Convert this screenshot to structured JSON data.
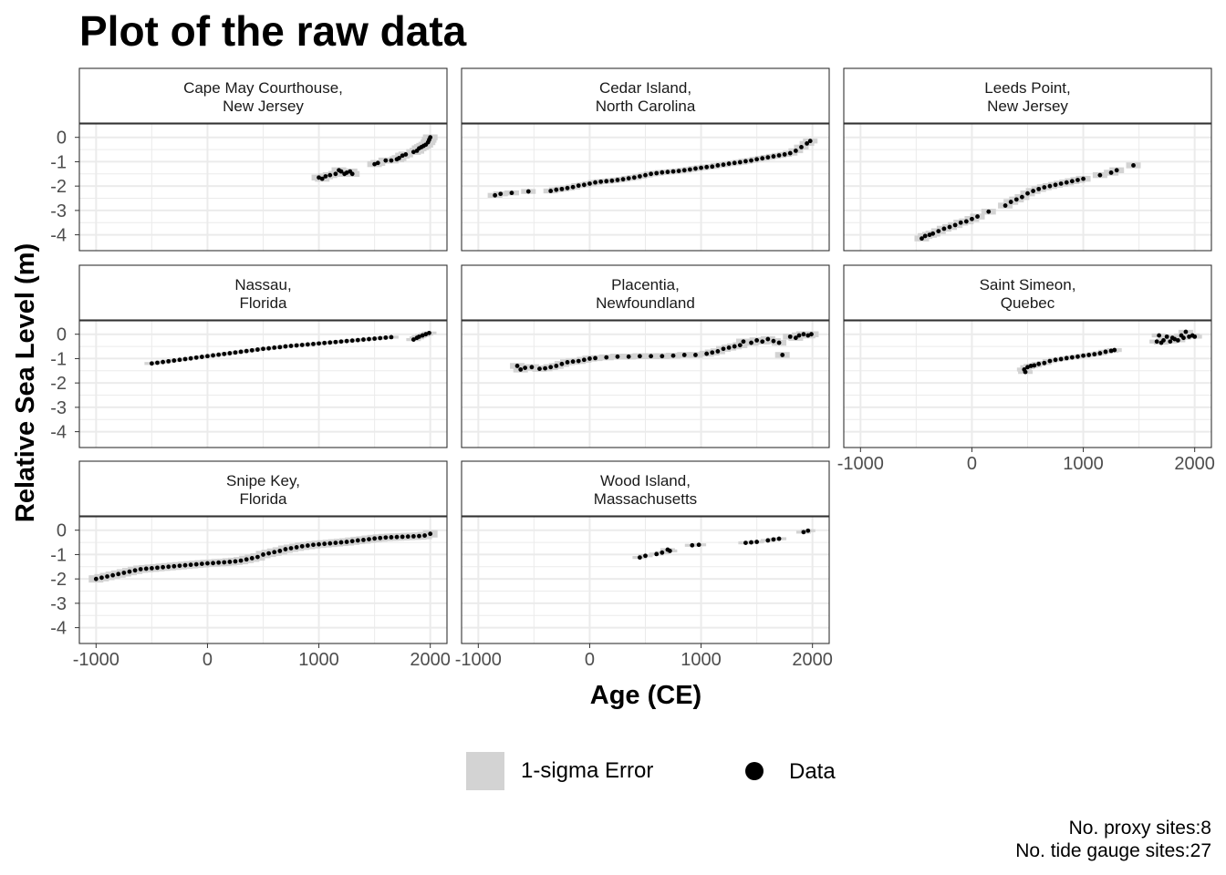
{
  "title": "Plot of the raw data",
  "caption": {
    "proxy": "No. proxy sites:8",
    "tide": "No. tide gauge sites:27"
  },
  "legend": {
    "error_label": "1-sigma Error",
    "data_label": "Data"
  },
  "colors": {
    "points": "#000000",
    "error_band": "#d3d3d3",
    "panel_border": "#333333",
    "strip_fill": "#ffffff",
    "grid": "#ebebeb"
  },
  "chart_data": {
    "type": "scatter",
    "title": "Plot of the raw data",
    "xlabel": "Age (CE)",
    "ylabel": "Relative Sea Level (m)",
    "xlim": [
      -1150,
      2150
    ],
    "ylim": [
      -4.65,
      0.55
    ],
    "xticks": [
      -1000,
      0,
      1000,
      2000
    ],
    "xtick_labels": [
      "-1000",
      "0",
      "1000",
      "2000"
    ],
    "yticks": [
      0,
      -1,
      -2,
      -3,
      -4
    ],
    "ytick_labels": [
      "0",
      "-1",
      "-2",
      "-3",
      "-4"
    ],
    "grid": true,
    "facets": [
      {
        "label": [
          "Cape May Courthouse,",
          "New Jersey"
        ],
        "error_halfwidth": 0.12,
        "x": [
          1000,
          1030,
          1060,
          1100,
          1150,
          1180,
          1200,
          1230,
          1250,
          1280,
          1300,
          1500,
          1530,
          1600,
          1650,
          1700,
          1720,
          1750,
          1780,
          1850,
          1880,
          1900,
          1920,
          1940,
          1960,
          1980,
          1990,
          2000
        ],
        "y": [
          -1.65,
          -1.7,
          -1.6,
          -1.55,
          -1.5,
          -1.35,
          -1.4,
          -1.5,
          -1.45,
          -1.4,
          -1.5,
          -1.1,
          -1.05,
          -0.95,
          -0.95,
          -0.9,
          -0.85,
          -0.75,
          -0.7,
          -0.6,
          -0.55,
          -0.45,
          -0.4,
          -0.35,
          -0.3,
          -0.2,
          -0.1,
          0.0
        ]
      },
      {
        "label": [
          "Cedar Island,",
          "North Carolina"
        ],
        "error_halfwidth": 0.1,
        "x": [
          -850,
          -800,
          -700,
          -550,
          -350,
          -300,
          -250,
          -200,
          -150,
          -100,
          -50,
          0,
          50,
          100,
          150,
          200,
          250,
          300,
          350,
          400,
          450,
          500,
          550,
          600,
          650,
          700,
          750,
          800,
          850,
          900,
          950,
          1000,
          1050,
          1100,
          1150,
          1200,
          1250,
          1300,
          1350,
          1400,
          1450,
          1500,
          1550,
          1600,
          1650,
          1700,
          1750,
          1800,
          1850,
          1900,
          1950,
          1980
        ],
        "y": [
          -2.38,
          -2.32,
          -2.28,
          -2.22,
          -2.2,
          -2.15,
          -2.12,
          -2.08,
          -2.04,
          -1.98,
          -1.95,
          -1.9,
          -1.85,
          -1.82,
          -1.8,
          -1.78,
          -1.75,
          -1.72,
          -1.68,
          -1.65,
          -1.6,
          -1.55,
          -1.5,
          -1.47,
          -1.44,
          -1.42,
          -1.4,
          -1.38,
          -1.35,
          -1.32,
          -1.28,
          -1.25,
          -1.22,
          -1.2,
          -1.15,
          -1.12,
          -1.08,
          -1.05,
          -1.02,
          -0.98,
          -0.95,
          -0.9,
          -0.86,
          -0.82,
          -0.78,
          -0.74,
          -0.7,
          -0.65,
          -0.55,
          -0.4,
          -0.25,
          -0.15
        ]
      },
      {
        "label": [
          "Leeds Point,",
          "New Jersey"
        ],
        "error_halfwidth": 0.12,
        "x": [
          -450,
          -420,
          -380,
          -350,
          -300,
          -250,
          -200,
          -150,
          -100,
          -50,
          0,
          50,
          150,
          300,
          350,
          400,
          450,
          500,
          550,
          600,
          650,
          700,
          750,
          800,
          850,
          900,
          950,
          1000,
          1150,
          1250,
          1300,
          1450
        ],
        "y": [
          -4.15,
          -4.05,
          -4.0,
          -3.95,
          -3.85,
          -3.75,
          -3.68,
          -3.6,
          -3.5,
          -3.45,
          -3.35,
          -3.25,
          -3.05,
          -2.8,
          -2.65,
          -2.55,
          -2.45,
          -2.3,
          -2.2,
          -2.12,
          -2.05,
          -2.0,
          -1.95,
          -1.9,
          -1.85,
          -1.8,
          -1.75,
          -1.7,
          -1.55,
          -1.45,
          -1.35,
          -1.15
        ]
      },
      {
        "label": [
          "Nassau,",
          "Florida"
        ],
        "error_halfwidth": 0.06,
        "x": [
          -500,
          -450,
          -400,
          -350,
          -300,
          -250,
          -200,
          -150,
          -100,
          -50,
          0,
          50,
          100,
          150,
          200,
          250,
          300,
          350,
          400,
          450,
          500,
          550,
          600,
          650,
          700,
          750,
          800,
          850,
          900,
          950,
          1000,
          1050,
          1100,
          1150,
          1200,
          1250,
          1300,
          1350,
          1400,
          1450,
          1500,
          1550,
          1600,
          1650,
          1850,
          1880,
          1900,
          1930,
          1960,
          1990
        ],
        "y": [
          -1.2,
          -1.17,
          -1.14,
          -1.11,
          -1.08,
          -1.05,
          -1.02,
          -0.99,
          -0.96,
          -0.93,
          -0.9,
          -0.87,
          -0.84,
          -0.81,
          -0.78,
          -0.75,
          -0.72,
          -0.69,
          -0.66,
          -0.63,
          -0.6,
          -0.58,
          -0.55,
          -0.53,
          -0.5,
          -0.48,
          -0.46,
          -0.44,
          -0.42,
          -0.4,
          -0.38,
          -0.36,
          -0.34,
          -0.32,
          -0.3,
          -0.28,
          -0.26,
          -0.24,
          -0.22,
          -0.2,
          -0.18,
          -0.16,
          -0.14,
          -0.12,
          -0.22,
          -0.15,
          -0.1,
          -0.05,
          0.0,
          0.05
        ]
      },
      {
        "label": [
          "Placentia,",
          "Newfoundland"
        ],
        "error_halfwidth": 0.12,
        "x": [
          -650,
          -620,
          -580,
          -520,
          -450,
          -400,
          -350,
          -300,
          -250,
          -200,
          -150,
          -100,
          -50,
          0,
          50,
          150,
          250,
          350,
          450,
          550,
          650,
          750,
          850,
          950,
          1050,
          1100,
          1150,
          1200,
          1250,
          1300,
          1350,
          1380,
          1450,
          1500,
          1550,
          1600,
          1650,
          1700,
          1730,
          1800,
          1850,
          1880,
          1920,
          1960,
          1990
        ],
        "y": [
          -1.3,
          -1.45,
          -1.38,
          -1.35,
          -1.42,
          -1.4,
          -1.35,
          -1.3,
          -1.22,
          -1.15,
          -1.12,
          -1.1,
          -1.05,
          -1.0,
          -0.98,
          -0.95,
          -0.92,
          -0.92,
          -0.9,
          -0.9,
          -0.9,
          -0.88,
          -0.85,
          -0.85,
          -0.8,
          -0.75,
          -0.7,
          -0.6,
          -0.55,
          -0.5,
          -0.45,
          -0.3,
          -0.35,
          -0.25,
          -0.3,
          -0.2,
          -0.28,
          -0.35,
          -0.85,
          -0.1,
          -0.15,
          -0.05,
          0.0,
          -0.05,
          0.0
        ]
      },
      {
        "label": [
          "Saint Simeon,",
          "Quebec"
        ],
        "error_halfwidth": 0.08,
        "x": [
          470,
          480,
          500,
          530,
          560,
          600,
          650,
          700,
          750,
          800,
          850,
          900,
          950,
          1000,
          1050,
          1100,
          1150,
          1200,
          1250,
          1280,
          1660,
          1680,
          1700,
          1720,
          1750,
          1780,
          1800,
          1820,
          1850,
          1880,
          1900,
          1920,
          1950,
          1980,
          2000
        ],
        "y": [
          -1.45,
          -1.55,
          -1.35,
          -1.3,
          -1.28,
          -1.22,
          -1.18,
          -1.1,
          -1.05,
          -1.02,
          -0.98,
          -0.95,
          -0.92,
          -0.88,
          -0.85,
          -0.82,
          -0.78,
          -0.72,
          -0.68,
          -0.65,
          -0.3,
          -0.05,
          -0.35,
          -0.25,
          -0.1,
          -0.3,
          -0.15,
          -0.2,
          -0.25,
          -0.05,
          -0.15,
          0.1,
          -0.1,
          -0.05,
          -0.1
        ]
      },
      {
        "label": [
          "Snipe Key,",
          "Florida"
        ],
        "error_halfwidth": 0.15,
        "x": [
          -1000,
          -950,
          -900,
          -850,
          -800,
          -750,
          -700,
          -650,
          -600,
          -550,
          -500,
          -450,
          -400,
          -350,
          -300,
          -250,
          -200,
          -150,
          -100,
          -50,
          0,
          50,
          100,
          150,
          200,
          250,
          300,
          350,
          400,
          450,
          500,
          550,
          600,
          650,
          700,
          750,
          800,
          850,
          900,
          950,
          1000,
          1050,
          1100,
          1150,
          1200,
          1250,
          1300,
          1350,
          1400,
          1450,
          1500,
          1550,
          1600,
          1650,
          1700,
          1750,
          1800,
          1850,
          1900,
          1950,
          2000
        ],
        "y": [
          -2.0,
          -1.95,
          -1.9,
          -1.85,
          -1.8,
          -1.75,
          -1.7,
          -1.65,
          -1.6,
          -1.58,
          -1.56,
          -1.54,
          -1.52,
          -1.5,
          -1.48,
          -1.46,
          -1.44,
          -1.42,
          -1.4,
          -1.38,
          -1.36,
          -1.35,
          -1.33,
          -1.32,
          -1.3,
          -1.28,
          -1.25,
          -1.2,
          -1.15,
          -1.1,
          -1.0,
          -0.95,
          -0.9,
          -0.85,
          -0.78,
          -0.74,
          -0.7,
          -0.66,
          -0.63,
          -0.6,
          -0.58,
          -0.56,
          -0.54,
          -0.52,
          -0.5,
          -0.48,
          -0.45,
          -0.42,
          -0.4,
          -0.37,
          -0.34,
          -0.32,
          -0.3,
          -0.29,
          -0.28,
          -0.27,
          -0.26,
          -0.25,
          -0.24,
          -0.22,
          -0.15
        ]
      },
      {
        "label": [
          "Wood Island,",
          "Massachusetts"
        ],
        "error_halfwidth": 0.06,
        "x": [
          450,
          500,
          600,
          650,
          700,
          720,
          920,
          980,
          1400,
          1450,
          1500,
          1600,
          1650,
          1700,
          1920,
          1960
        ],
        "y": [
          -1.12,
          -1.05,
          -0.98,
          -0.92,
          -0.8,
          -0.85,
          -0.62,
          -0.6,
          -0.52,
          -0.5,
          -0.48,
          -0.42,
          -0.38,
          -0.35,
          -0.08,
          -0.02
        ]
      }
    ]
  }
}
